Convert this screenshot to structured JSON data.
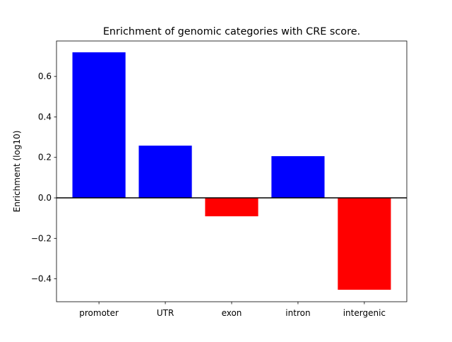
{
  "chart_data": {
    "type": "bar",
    "title": "Enrichment of genomic categories with CRE score.",
    "xlabel": "",
    "ylabel": "Enrichment (log10)",
    "categories": [
      "promoter",
      "UTR",
      "exon",
      "intron",
      "intergenic"
    ],
    "values": [
      0.719,
      0.258,
      -0.091,
      0.206,
      -0.454
    ],
    "bar_colors": [
      "#0000ff",
      "#0000ff",
      "#ff0000",
      "#0000ff",
      "#ff0000"
    ],
    "positive_color": "#0000ff",
    "negative_color": "#ff0000",
    "ylim": [
      -0.513,
      0.775
    ],
    "yticks": [
      -0.4,
      -0.2,
      0.0,
      0.2,
      0.4,
      0.6
    ],
    "ytick_labels": [
      "−0.4",
      "−0.2",
      "0.0",
      "0.2",
      "0.4",
      "0.6"
    ],
    "zero_line": true,
    "grid": false,
    "legend": "none"
  }
}
